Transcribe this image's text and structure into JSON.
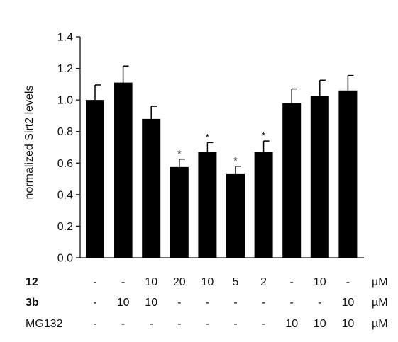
{
  "chart_data": {
    "type": "bar",
    "ylabel": "normalized Sirt2 levels",
    "ylim": [
      0,
      1.4
    ],
    "yticks": [
      "0.0",
      "0.2",
      "0.4",
      "0.6",
      "0.8",
      "1.0",
      "1.2",
      "1.4"
    ],
    "bar_color": "#000000",
    "grid": false,
    "values": [
      1.0,
      1.11,
      0.88,
      0.575,
      0.67,
      0.53,
      0.67,
      0.98,
      1.025,
      1.06
    ],
    "errors": [
      0.095,
      0.105,
      0.08,
      0.05,
      0.06,
      0.05,
      0.07,
      0.09,
      0.1,
      0.095
    ],
    "significance": [
      "",
      "",
      "",
      "*",
      "*",
      "*",
      "*",
      "",
      "",
      ""
    ],
    "conditions": [
      {
        "name": "12",
        "bold": true,
        "values": [
          "-",
          "-",
          "10",
          "20",
          "10",
          "5",
          "2",
          "-",
          "10",
          "-"
        ],
        "unit": "µM"
      },
      {
        "name": "3b",
        "bold": true,
        "values": [
          "-",
          "10",
          "10",
          "-",
          "-",
          "-",
          "-",
          "-",
          "-",
          "10"
        ],
        "unit": "µM"
      },
      {
        "name": "MG132",
        "bold": false,
        "values": [
          "-",
          "-",
          "-",
          "-",
          "-",
          "-",
          "-",
          "10",
          "10",
          "10"
        ],
        "unit": "µM"
      }
    ]
  }
}
